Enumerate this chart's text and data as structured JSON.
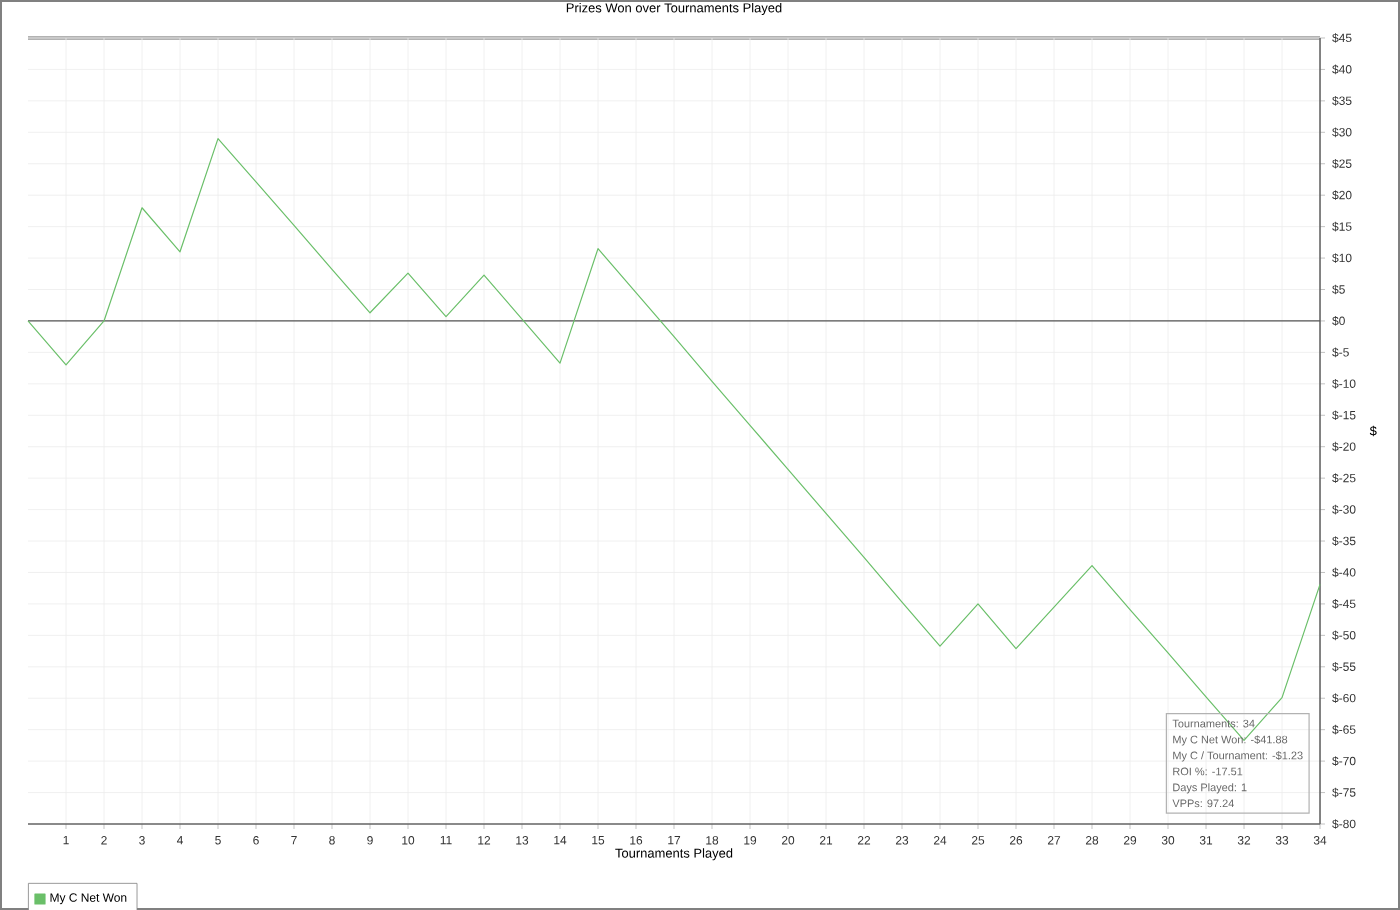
{
  "chart_data": {
    "type": "line",
    "title": "Prizes Won over Tournaments Played",
    "xlabel": "Tournaments Played",
    "ylabel": "$",
    "x": [
      0,
      1,
      2,
      3,
      4,
      5,
      6,
      7,
      8,
      9,
      10,
      11,
      12,
      13,
      14,
      15,
      16,
      17,
      18,
      19,
      20,
      21,
      22,
      23,
      24,
      25,
      26,
      27,
      28,
      29,
      30,
      31,
      32,
      33,
      34
    ],
    "series": [
      {
        "name": "My C Net Won",
        "color": "#6abf69",
        "values": [
          0,
          -7,
          0,
          18,
          11,
          29,
          22.1,
          15.2,
          8.2,
          1.3,
          7.6,
          0.7,
          7.3,
          0.3,
          -6.7,
          11.5,
          4.5,
          -2.5,
          -9.6,
          -16.6,
          -23.6,
          -30.6,
          -37.6,
          -44.7,
          -51.7,
          -45,
          -52.1,
          -45.5,
          -38.9,
          -45.9,
          -52.8,
          -59.8,
          -66.7,
          -59.9,
          -41.9
        ]
      }
    ],
    "xlim": [
      0,
      34
    ],
    "xticks": [
      1,
      2,
      3,
      4,
      5,
      6,
      7,
      8,
      9,
      10,
      11,
      12,
      13,
      14,
      15,
      16,
      17,
      18,
      19,
      20,
      21,
      22,
      23,
      24,
      25,
      26,
      27,
      28,
      29,
      30,
      31,
      32,
      33,
      34
    ],
    "ylim": [
      -80,
      45
    ],
    "yticks": [
      {
        "value": 45,
        "label": "$45"
      },
      {
        "value": 40,
        "label": "$40"
      },
      {
        "value": 35,
        "label": "$35"
      },
      {
        "value": 30,
        "label": "$30"
      },
      {
        "value": 25,
        "label": "$25"
      },
      {
        "value": 20,
        "label": "$20"
      },
      {
        "value": 15,
        "label": "$15"
      },
      {
        "value": 10,
        "label": "$10"
      },
      {
        "value": 5,
        "label": "$5"
      },
      {
        "value": 0,
        "label": "$0"
      },
      {
        "value": -5,
        "label": "$-5"
      },
      {
        "value": -10,
        "label": "$-10"
      },
      {
        "value": -15,
        "label": "$-15"
      },
      {
        "value": -20,
        "label": "$-20"
      },
      {
        "value": -25,
        "label": "$-25"
      },
      {
        "value": -30,
        "label": "$-30"
      },
      {
        "value": -35,
        "label": "$-35"
      },
      {
        "value": -40,
        "label": "$-40"
      },
      {
        "value": -45,
        "label": "$-45"
      },
      {
        "value": -50,
        "label": "$-50"
      },
      {
        "value": -55,
        "label": "$-55"
      },
      {
        "value": -60,
        "label": "$-60"
      },
      {
        "value": -65,
        "label": "$-65"
      },
      {
        "value": -70,
        "label": "$-70"
      },
      {
        "value": -75,
        "label": "$-75"
      },
      {
        "value": -80,
        "label": "$-80"
      }
    ],
    "ref_lines": [
      {
        "axis": "y",
        "value": 0,
        "color": "#555555"
      }
    ],
    "annotations": [
      "Tournaments: 34",
      "My C Net Won: -$41.88",
      "My C / Tournament: -$1.23",
      "ROI %: -17.51",
      "Days Played: 1",
      "VPPs: 97.24"
    ],
    "grid": true,
    "legend": "bottom left"
  }
}
